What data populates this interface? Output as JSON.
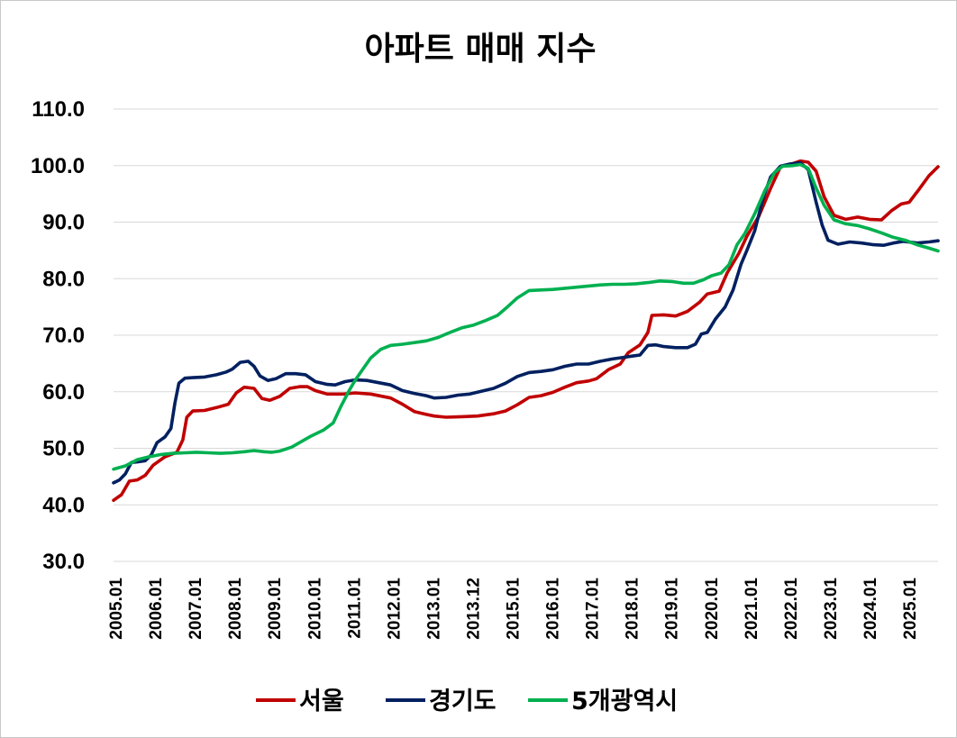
{
  "chart_data": {
    "type": "line",
    "title": "아파트 매매 지수",
    "xlabel": "",
    "ylabel": "",
    "ylim": [
      30,
      110
    ],
    "yticks": [
      "30.0",
      "40.0",
      "50.0",
      "60.0",
      "70.0",
      "80.0",
      "90.0",
      "100.0",
      "110.0"
    ],
    "xticks": [
      "2005.01",
      "2006.01",
      "2007.01",
      "2008.01",
      "2009.01",
      "2010.01",
      "2011.01",
      "2012.01",
      "2013.01",
      "2013.12",
      "2015.01",
      "2016.01",
      "2017.01",
      "2018.01",
      "2019.01",
      "2020.01",
      "2021.01",
      "2022.01",
      "2023.01",
      "2024.01",
      "2025.01"
    ],
    "x_range": [
      2005.0,
      2025.83
    ],
    "grid": true,
    "legend_position": "bottom",
    "series": [
      {
        "name": "서울",
        "color": "#c00000",
        "points": [
          [
            2005.0,
            40.8
          ],
          [
            2005.2,
            41.8
          ],
          [
            2005.4,
            44.2
          ],
          [
            2005.6,
            44.4
          ],
          [
            2005.8,
            45.2
          ],
          [
            2006.0,
            47.0
          ],
          [
            2006.3,
            48.5
          ],
          [
            2006.6,
            49.3
          ],
          [
            2006.75,
            51.5
          ],
          [
            2006.85,
            55.5
          ],
          [
            2007.0,
            56.6
          ],
          [
            2007.3,
            56.7
          ],
          [
            2007.6,
            57.2
          ],
          [
            2007.9,
            57.8
          ],
          [
            2008.1,
            59.8
          ],
          [
            2008.3,
            60.8
          ],
          [
            2008.55,
            60.6
          ],
          [
            2008.75,
            58.8
          ],
          [
            2008.95,
            58.5
          ],
          [
            2009.2,
            59.2
          ],
          [
            2009.45,
            60.6
          ],
          [
            2009.7,
            60.9
          ],
          [
            2009.9,
            60.9
          ],
          [
            2010.1,
            60.2
          ],
          [
            2010.4,
            59.6
          ],
          [
            2010.8,
            59.6
          ],
          [
            2011.1,
            59.8
          ],
          [
            2011.5,
            59.6
          ],
          [
            2012.0,
            58.9
          ],
          [
            2012.3,
            57.8
          ],
          [
            2012.6,
            56.5
          ],
          [
            2012.9,
            56.0
          ],
          [
            2013.1,
            55.7
          ],
          [
            2013.4,
            55.5
          ],
          [
            2013.8,
            55.6
          ],
          [
            2014.2,
            55.7
          ],
          [
            2014.6,
            56.1
          ],
          [
            2014.9,
            56.6
          ],
          [
            2015.2,
            57.7
          ],
          [
            2015.5,
            59.0
          ],
          [
            2015.8,
            59.3
          ],
          [
            2016.1,
            59.9
          ],
          [
            2016.4,
            60.8
          ],
          [
            2016.7,
            61.6
          ],
          [
            2017.0,
            61.9
          ],
          [
            2017.2,
            62.3
          ],
          [
            2017.5,
            63.9
          ],
          [
            2017.8,
            64.9
          ],
          [
            2018.0,
            66.9
          ],
          [
            2018.3,
            68.3
          ],
          [
            2018.5,
            70.5
          ],
          [
            2018.6,
            73.5
          ],
          [
            2018.9,
            73.6
          ],
          [
            2019.2,
            73.4
          ],
          [
            2019.5,
            74.2
          ],
          [
            2019.8,
            75.8
          ],
          [
            2020.0,
            77.3
          ],
          [
            2020.3,
            77.8
          ],
          [
            2020.5,
            81.0
          ],
          [
            2020.8,
            84.5
          ],
          [
            2021.0,
            87.5
          ],
          [
            2021.3,
            91.0
          ],
          [
            2021.6,
            96.0
          ],
          [
            2021.85,
            99.8
          ],
          [
            2022.1,
            100.2
          ],
          [
            2022.35,
            100.8
          ],
          [
            2022.55,
            100.6
          ],
          [
            2022.75,
            99.0
          ],
          [
            2022.95,
            94.5
          ],
          [
            2023.2,
            91.2
          ],
          [
            2023.5,
            90.5
          ],
          [
            2023.8,
            90.9
          ],
          [
            2024.1,
            90.5
          ],
          [
            2024.4,
            90.4
          ],
          [
            2024.65,
            92.0
          ],
          [
            2024.9,
            93.2
          ],
          [
            2025.1,
            93.5
          ],
          [
            2025.35,
            95.8
          ],
          [
            2025.6,
            98.2
          ],
          [
            2025.83,
            99.8
          ]
        ]
      },
      {
        "name": "경기도",
        "color": "#002060",
        "points": [
          [
            2005.0,
            43.9
          ],
          [
            2005.15,
            44.4
          ],
          [
            2005.3,
            45.5
          ],
          [
            2005.45,
            47.5
          ],
          [
            2005.6,
            47.6
          ],
          [
            2005.8,
            47.8
          ],
          [
            2005.95,
            48.8
          ],
          [
            2006.1,
            51.0
          ],
          [
            2006.3,
            52.0
          ],
          [
            2006.45,
            53.5
          ],
          [
            2006.55,
            58.0
          ],
          [
            2006.65,
            61.5
          ],
          [
            2006.8,
            62.4
          ],
          [
            2007.0,
            62.5
          ],
          [
            2007.3,
            62.6
          ],
          [
            2007.6,
            63.0
          ],
          [
            2007.85,
            63.5
          ],
          [
            2008.0,
            64.0
          ],
          [
            2008.2,
            65.2
          ],
          [
            2008.4,
            65.4
          ],
          [
            2008.55,
            64.5
          ],
          [
            2008.7,
            62.8
          ],
          [
            2008.9,
            62.0
          ],
          [
            2009.1,
            62.3
          ],
          [
            2009.35,
            63.2
          ],
          [
            2009.6,
            63.2
          ],
          [
            2009.85,
            63.0
          ],
          [
            2010.1,
            61.8
          ],
          [
            2010.4,
            61.3
          ],
          [
            2010.6,
            61.2
          ],
          [
            2010.85,
            61.8
          ],
          [
            2011.1,
            62.1
          ],
          [
            2011.4,
            62.0
          ],
          [
            2011.7,
            61.6
          ],
          [
            2012.0,
            61.2
          ],
          [
            2012.3,
            60.2
          ],
          [
            2012.6,
            59.7
          ],
          [
            2012.9,
            59.3
          ],
          [
            2013.1,
            58.9
          ],
          [
            2013.4,
            59.0
          ],
          [
            2013.7,
            59.4
          ],
          [
            2014.0,
            59.6
          ],
          [
            2014.3,
            60.1
          ],
          [
            2014.6,
            60.6
          ],
          [
            2014.9,
            61.5
          ],
          [
            2015.2,
            62.7
          ],
          [
            2015.5,
            63.4
          ],
          [
            2015.8,
            63.6
          ],
          [
            2016.1,
            63.9
          ],
          [
            2016.4,
            64.5
          ],
          [
            2016.7,
            64.9
          ],
          [
            2017.0,
            64.9
          ],
          [
            2017.3,
            65.4
          ],
          [
            2017.6,
            65.8
          ],
          [
            2017.9,
            66.1
          ],
          [
            2018.1,
            66.3
          ],
          [
            2018.3,
            66.5
          ],
          [
            2018.5,
            68.2
          ],
          [
            2018.7,
            68.3
          ],
          [
            2018.9,
            68.0
          ],
          [
            2019.2,
            67.8
          ],
          [
            2019.5,
            67.8
          ],
          [
            2019.7,
            68.4
          ],
          [
            2019.85,
            70.2
          ],
          [
            2020.0,
            70.5
          ],
          [
            2020.2,
            72.8
          ],
          [
            2020.45,
            75.0
          ],
          [
            2020.65,
            78.0
          ],
          [
            2020.85,
            82.5
          ],
          [
            2021.0,
            85.0
          ],
          [
            2021.2,
            88.5
          ],
          [
            2021.4,
            94.0
          ],
          [
            2021.6,
            98.0
          ],
          [
            2021.85,
            99.9
          ],
          [
            2022.1,
            100.3
          ],
          [
            2022.35,
            100.5
          ],
          [
            2022.55,
            99.3
          ],
          [
            2022.75,
            93.5
          ],
          [
            2022.9,
            89.5
          ],
          [
            2023.05,
            86.8
          ],
          [
            2023.3,
            86.1
          ],
          [
            2023.6,
            86.5
          ],
          [
            2023.9,
            86.3
          ],
          [
            2024.2,
            86.0
          ],
          [
            2024.45,
            85.9
          ],
          [
            2024.7,
            86.3
          ],
          [
            2024.95,
            86.6
          ],
          [
            2025.3,
            86.3
          ],
          [
            2025.6,
            86.5
          ],
          [
            2025.83,
            86.7
          ]
        ]
      },
      {
        "name": "5개광역시",
        "color": "#00b050",
        "points": [
          [
            2005.0,
            46.3
          ],
          [
            2005.3,
            46.9
          ],
          [
            2005.6,
            48.0
          ],
          [
            2005.9,
            48.5
          ],
          [
            2006.2,
            48.9
          ],
          [
            2006.5,
            49.1
          ],
          [
            2006.8,
            49.2
          ],
          [
            2007.1,
            49.3
          ],
          [
            2007.4,
            49.2
          ],
          [
            2007.7,
            49.1
          ],
          [
            2008.0,
            49.2
          ],
          [
            2008.3,
            49.4
          ],
          [
            2008.55,
            49.6
          ],
          [
            2008.8,
            49.4
          ],
          [
            2009.0,
            49.3
          ],
          [
            2009.2,
            49.5
          ],
          [
            2009.5,
            50.2
          ],
          [
            2009.8,
            51.4
          ],
          [
            2010.0,
            52.2
          ],
          [
            2010.3,
            53.2
          ],
          [
            2010.55,
            54.5
          ],
          [
            2010.75,
            57.5
          ],
          [
            2010.95,
            60.2
          ],
          [
            2011.1,
            62.0
          ],
          [
            2011.3,
            64.0
          ],
          [
            2011.5,
            66.0
          ],
          [
            2011.75,
            67.5
          ],
          [
            2012.0,
            68.2
          ],
          [
            2012.3,
            68.4
          ],
          [
            2012.6,
            68.7
          ],
          [
            2012.9,
            69.0
          ],
          [
            2013.2,
            69.6
          ],
          [
            2013.5,
            70.5
          ],
          [
            2013.8,
            71.3
          ],
          [
            2014.1,
            71.8
          ],
          [
            2014.4,
            72.6
          ],
          [
            2014.7,
            73.5
          ],
          [
            2014.95,
            75.0
          ],
          [
            2015.2,
            76.6
          ],
          [
            2015.5,
            77.9
          ],
          [
            2015.8,
            78.0
          ],
          [
            2016.1,
            78.1
          ],
          [
            2016.4,
            78.3
          ],
          [
            2016.7,
            78.5
          ],
          [
            2017.0,
            78.7
          ],
          [
            2017.3,
            78.9
          ],
          [
            2017.6,
            79.0
          ],
          [
            2017.9,
            79.0
          ],
          [
            2018.2,
            79.1
          ],
          [
            2018.5,
            79.3
          ],
          [
            2018.8,
            79.6
          ],
          [
            2019.1,
            79.5
          ],
          [
            2019.4,
            79.2
          ],
          [
            2019.65,
            79.2
          ],
          [
            2019.9,
            79.8
          ],
          [
            2020.1,
            80.5
          ],
          [
            2020.35,
            81.0
          ],
          [
            2020.55,
            82.5
          ],
          [
            2020.75,
            86.0
          ],
          [
            2020.95,
            88.0
          ],
          [
            2021.2,
            91.5
          ],
          [
            2021.45,
            95.5
          ],
          [
            2021.7,
            98.8
          ],
          [
            2021.9,
            99.9
          ],
          [
            2022.15,
            100.0
          ],
          [
            2022.35,
            100.2
          ],
          [
            2022.55,
            99.5
          ],
          [
            2022.75,
            96.0
          ],
          [
            2022.95,
            93.0
          ],
          [
            2023.2,
            90.4
          ],
          [
            2023.5,
            89.7
          ],
          [
            2023.8,
            89.4
          ],
          [
            2024.1,
            88.8
          ],
          [
            2024.4,
            88.1
          ],
          [
            2024.7,
            87.3
          ],
          [
            2025.0,
            86.8
          ],
          [
            2025.3,
            86.0
          ],
          [
            2025.6,
            85.4
          ],
          [
            2025.83,
            84.9
          ]
        ]
      }
    ]
  }
}
